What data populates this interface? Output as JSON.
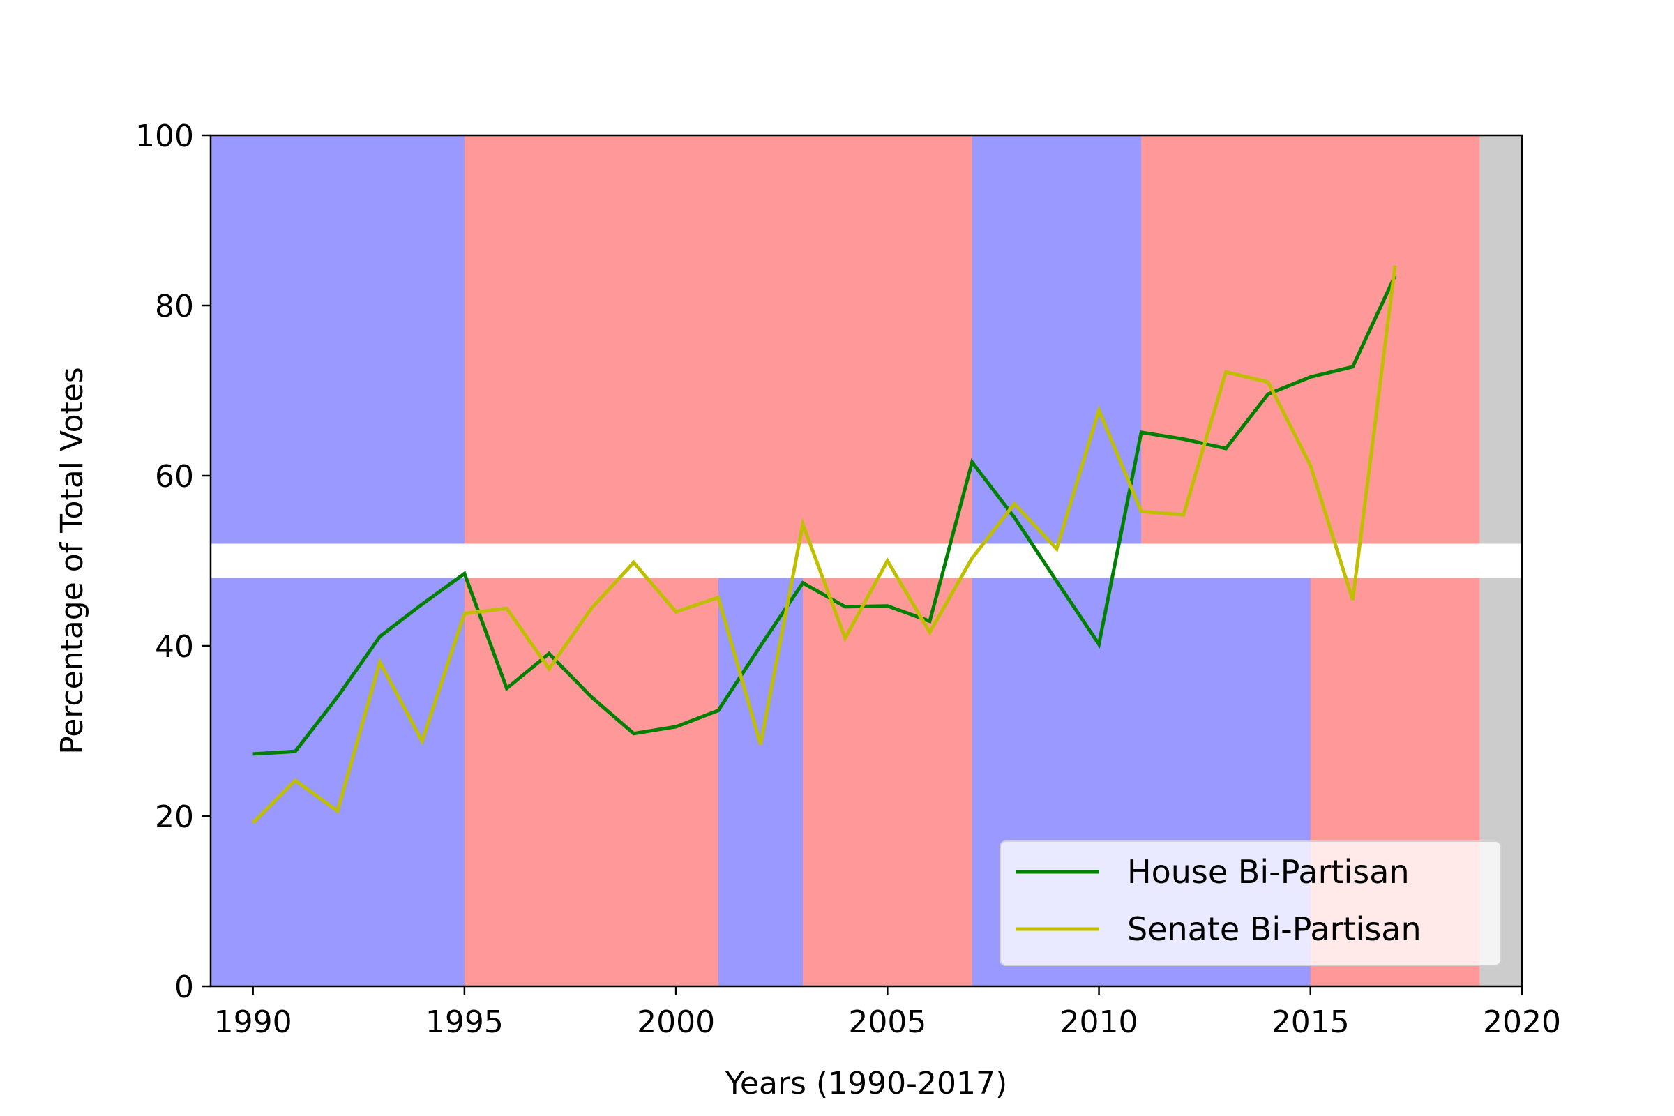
{
  "chart_data": {
    "type": "line",
    "title": "",
    "xlabel": "Years (1990-2017)",
    "ylabel": "Percentage of Total Votes",
    "xlim": [
      1989,
      2020
    ],
    "ylim": [
      0,
      100
    ],
    "xticks": [
      1990,
      1995,
      2000,
      2005,
      2010,
      2015,
      2020
    ],
    "yticks": [
      0,
      20,
      40,
      60,
      80,
      100
    ],
    "grid": false,
    "legend_position": "lower-right",
    "colors": {
      "democrat": "#9999ff",
      "republican": "#ff9999",
      "future": "#cccccc",
      "divider": "#ffffff",
      "house": "#008000",
      "senate": "#bfbf00"
    },
    "background_bands": {
      "senate_upper": {
        "y_range": [
          52,
          100
        ],
        "segments": [
          {
            "start": 1989,
            "end": 1995,
            "party": "democrat"
          },
          {
            "start": 1995,
            "end": 2007,
            "party": "republican"
          },
          {
            "start": 2007,
            "end": 2011,
            "party": "democrat"
          },
          {
            "start": 2011,
            "end": 2019,
            "party": "republican"
          },
          {
            "start": 2019,
            "end": 2020,
            "party": "future"
          }
        ]
      },
      "divider": {
        "y_range": [
          48,
          52
        ]
      },
      "house_lower": {
        "y_range": [
          0,
          48
        ],
        "segments": [
          {
            "start": 1989,
            "end": 1995,
            "party": "democrat"
          },
          {
            "start": 1995,
            "end": 2001,
            "party": "republican"
          },
          {
            "start": 2001,
            "end": 2003,
            "party": "democrat"
          },
          {
            "start": 2003,
            "end": 2007,
            "party": "republican"
          },
          {
            "start": 2007,
            "end": 2015,
            "party": "democrat"
          },
          {
            "start": 2015,
            "end": 2019,
            "party": "republican"
          },
          {
            "start": 2019,
            "end": 2020,
            "party": "future"
          }
        ]
      }
    },
    "x": [
      1990,
      1991,
      1992,
      1993,
      1994,
      1995,
      1996,
      1997,
      1998,
      1999,
      2000,
      2001,
      2002,
      2003,
      2004,
      2005,
      2006,
      2007,
      2008,
      2009,
      2010,
      2011,
      2012,
      2013,
      2014,
      2015,
      2016,
      2017
    ],
    "series": [
      {
        "name": "House Bi-Partisan",
        "color_key": "house",
        "values": [
          27.3,
          27.6,
          34.0,
          41.1,
          44.9,
          48.5,
          35.0,
          39.1,
          34.0,
          29.7,
          30.5,
          32.4,
          40.0,
          47.4,
          44.6,
          44.7,
          42.9,
          61.6,
          55.1,
          47.6,
          40.2,
          65.1,
          64.3,
          63.2,
          69.6,
          71.6,
          72.8,
          83.5
        ]
      },
      {
        "name": "Senate Bi-Partisan",
        "color_key": "senate",
        "values": [
          19.2,
          24.2,
          20.6,
          38.1,
          28.8,
          43.8,
          44.4,
          37.3,
          44.4,
          49.8,
          44.0,
          45.7,
          28.4,
          54.3,
          40.9,
          50.0,
          41.6,
          50.3,
          56.7,
          51.4,
          67.7,
          55.8,
          55.4,
          72.2,
          71.0,
          61.2,
          45.4,
          84.7
        ]
      }
    ]
  }
}
